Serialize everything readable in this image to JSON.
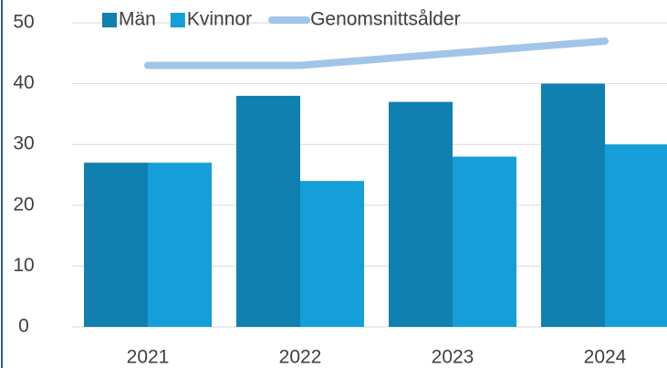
{
  "chart_data": {
    "type": "bar",
    "categories": [
      "2021",
      "2022",
      "2023",
      "2024"
    ],
    "series": [
      {
        "name": "Män",
        "color": "#0f80b0",
        "values": [
          27,
          38,
          37,
          40
        ]
      },
      {
        "name": "Kvinnor",
        "color": "#149fd8",
        "values": [
          27,
          24,
          28,
          30
        ]
      },
      {
        "name": "Genomsnittsålder",
        "color": "#a1c5e7",
        "type": "line",
        "values": [
          43,
          43,
          45,
          47
        ]
      }
    ],
    "ylim": [
      0,
      50
    ],
    "yticks": [
      0,
      10,
      20,
      30,
      40,
      50
    ],
    "grid": true,
    "legend": "top"
  }
}
